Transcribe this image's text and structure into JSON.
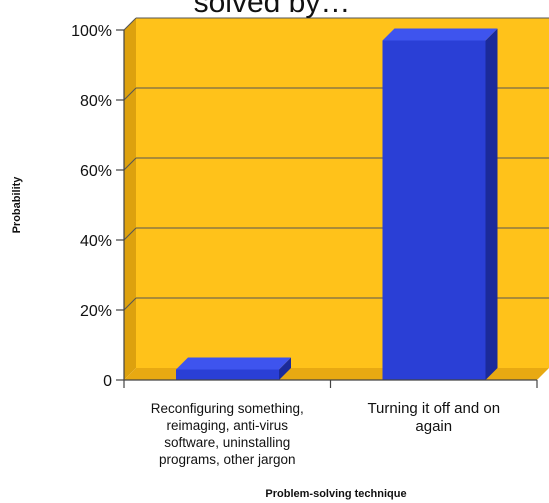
{
  "chart_data": {
    "type": "bar",
    "title": "solved by…",
    "xlabel": "Problem-solving technique",
    "ylabel": "Probability",
    "categories": [
      "Reconfiguring something, reimaging, anti-virus software, uninstalling programs, other jargon",
      "Turning it off and on again"
    ],
    "category_lines": [
      [
        "Reconfiguring something,",
        "reimaging, anti-virus",
        "software, uninstalling",
        "programs, other jargon"
      ],
      [
        "Turning it off and on",
        "again"
      ]
    ],
    "values": [
      3,
      97
    ],
    "ylim": [
      0,
      100
    ],
    "yticks": [
      0,
      20,
      40,
      60,
      80,
      100
    ],
    "ytick_labels": [
      "0",
      "20%",
      "40%",
      "60%",
      "80%",
      "100%"
    ],
    "grid": true,
    "legend": "none",
    "colors": {
      "plot_back": "#FFC21A",
      "plot_side": "#DDA10E",
      "plot_floor": "#E8A912",
      "bar_front": "#2A3FD6",
      "bar_side": "#1B2A9A",
      "bar_top": "#3E54EE",
      "grid": "#555555",
      "axis": "#444444"
    }
  }
}
